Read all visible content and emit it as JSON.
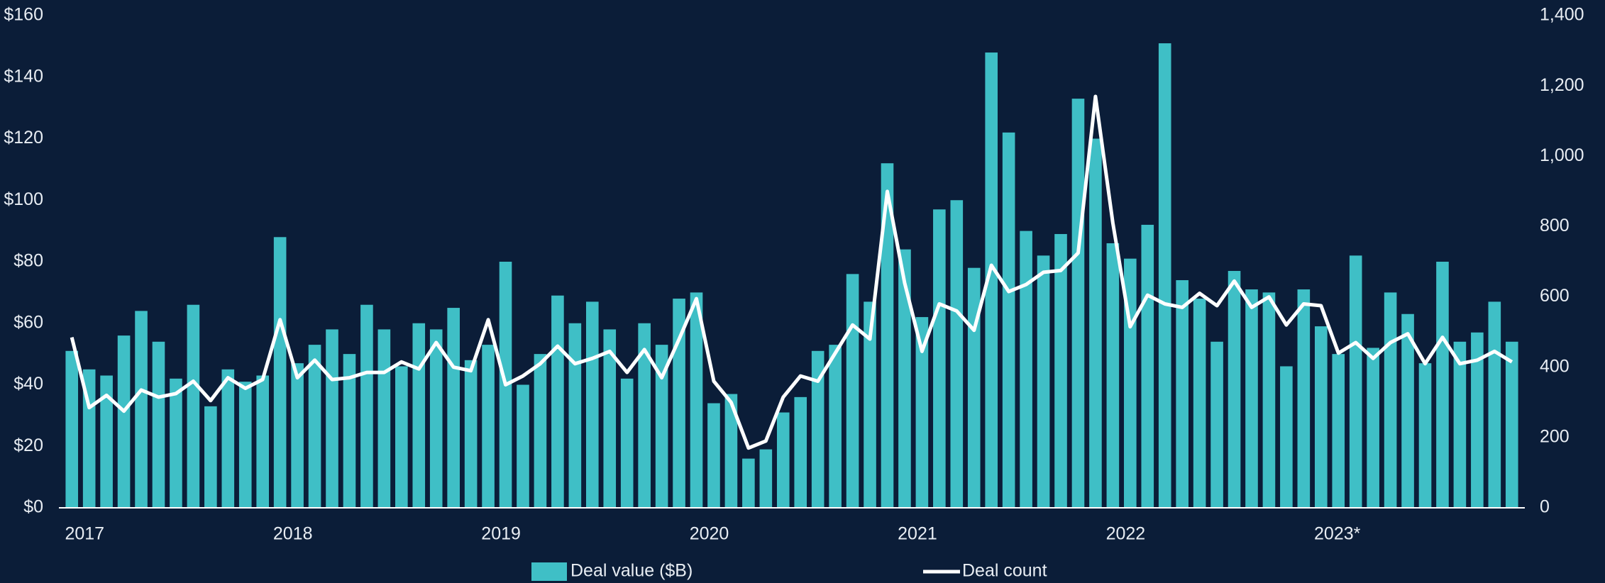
{
  "chart_data": {
    "type": "bar",
    "categories": [
      "2017",
      null,
      null,
      null,
      null,
      null,
      null,
      null,
      null,
      null,
      null,
      null,
      "2018",
      null,
      null,
      null,
      null,
      null,
      null,
      null,
      null,
      null,
      null,
      null,
      "2019",
      null,
      null,
      null,
      null,
      null,
      null,
      null,
      null,
      null,
      null,
      null,
      "2020",
      null,
      null,
      null,
      null,
      null,
      null,
      null,
      null,
      null,
      null,
      null,
      "2021",
      null,
      null,
      null,
      null,
      null,
      null,
      null,
      null,
      null,
      null,
      null,
      "2022",
      null,
      null,
      null,
      null,
      null,
      null,
      null,
      null,
      null,
      null,
      null,
      "2023*",
      null,
      null,
      null,
      null,
      null,
      null,
      null,
      null,
      null,
      null,
      null
    ],
    "series": [
      {
        "name": "Deal value ($B)",
        "type": "bar",
        "color": "#3fbfc6",
        "values": [
          51,
          45,
          43,
          56,
          64,
          54,
          42,
          66,
          33,
          45,
          41,
          43,
          88,
          47,
          53,
          58,
          50,
          66,
          58,
          46,
          60,
          58,
          65,
          48,
          53,
          80,
          40,
          50,
          69,
          60,
          67,
          58,
          42,
          60,
          53,
          68,
          70,
          34,
          37,
          16,
          19,
          31,
          36,
          51,
          53,
          76,
          67,
          112,
          84,
          62,
          97,
          100,
          78,
          148,
          122,
          90,
          82,
          89,
          133,
          120,
          86,
          81,
          92,
          151,
          74,
          68,
          54,
          77,
          71,
          70,
          46,
          71,
          59,
          50,
          82,
          52,
          70,
          63,
          47,
          80,
          54,
          57,
          67,
          54
        ]
      },
      {
        "name": "Deal count",
        "type": "line",
        "axis": "y2",
        "color": "#ffffff",
        "values": [
          485,
          285,
          320,
          275,
          335,
          315,
          325,
          360,
          305,
          370,
          340,
          365,
          535,
          370,
          420,
          365,
          370,
          385,
          385,
          415,
          395,
          470,
          400,
          390,
          535,
          350,
          375,
          410,
          460,
          410,
          425,
          445,
          385,
          450,
          370,
          480,
          595,
          360,
          300,
          170,
          190,
          315,
          375,
          360,
          440,
          520,
          480,
          900,
          640,
          445,
          580,
          560,
          505,
          690,
          615,
          635,
          670,
          675,
          725,
          1170,
          810,
          515,
          605,
          580,
          570,
          610,
          575,
          645,
          570,
          600,
          520,
          580,
          575,
          440,
          470,
          425,
          470,
          495,
          410,
          485,
          410,
          420,
          445,
          415
        ]
      }
    ],
    "ylim": [
      0,
      160
    ],
    "yticks": [
      {
        "value": 0,
        "label": "$0"
      },
      {
        "value": 20,
        "label": "$20"
      },
      {
        "value": 40,
        "label": "$40"
      },
      {
        "value": 60,
        "label": "$60"
      },
      {
        "value": 80,
        "label": "$80"
      },
      {
        "value": 100,
        "label": "$100"
      },
      {
        "value": 120,
        "label": "$120"
      },
      {
        "value": 140,
        "label": "$140"
      },
      {
        "value": 160,
        "label": "$160"
      }
    ],
    "y2lim": [
      0,
      1400
    ],
    "y2ticks": [
      0,
      200,
      400,
      600,
      800,
      {
        "value": 1000,
        "label": "1,000"
      },
      {
        "value": 1200,
        "label": "1,200"
      },
      {
        "value": 1400,
        "label": "1,400"
      }
    ],
    "grid": false,
    "legend": "bottom"
  }
}
